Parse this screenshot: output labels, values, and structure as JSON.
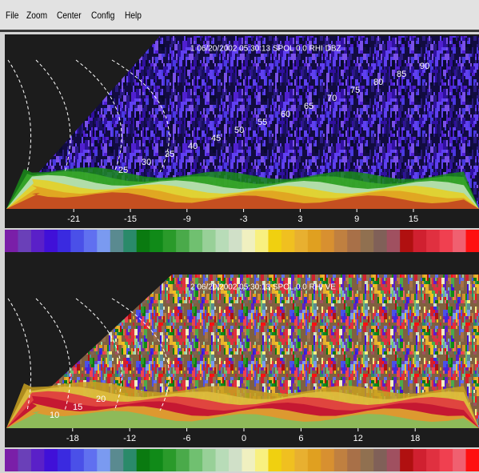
{
  "menu": [
    "File",
    "Zoom",
    "Center",
    "Config",
    "Help"
  ],
  "panels": [
    {
      "title": "1 06/20/2002 05:30:13 SPOL 0.0 RHI DBZ",
      "xticks": [
        -21,
        -15,
        -9,
        -3,
        3,
        9,
        15
      ],
      "ring_labels": [
        "25",
        "30",
        "35",
        "40",
        "45",
        "50",
        "55",
        "60",
        "65",
        "70",
        "75",
        "80",
        "85",
        "90"
      ]
    },
    {
      "title": "2 06/20/2002 05:30:13 SPOL 0.0 RHI VE",
      "xticks": [
        -18,
        -12,
        -6,
        0,
        6,
        12,
        18
      ],
      "ring_labels": [
        "10",
        "15",
        "20"
      ]
    }
  ]
}
